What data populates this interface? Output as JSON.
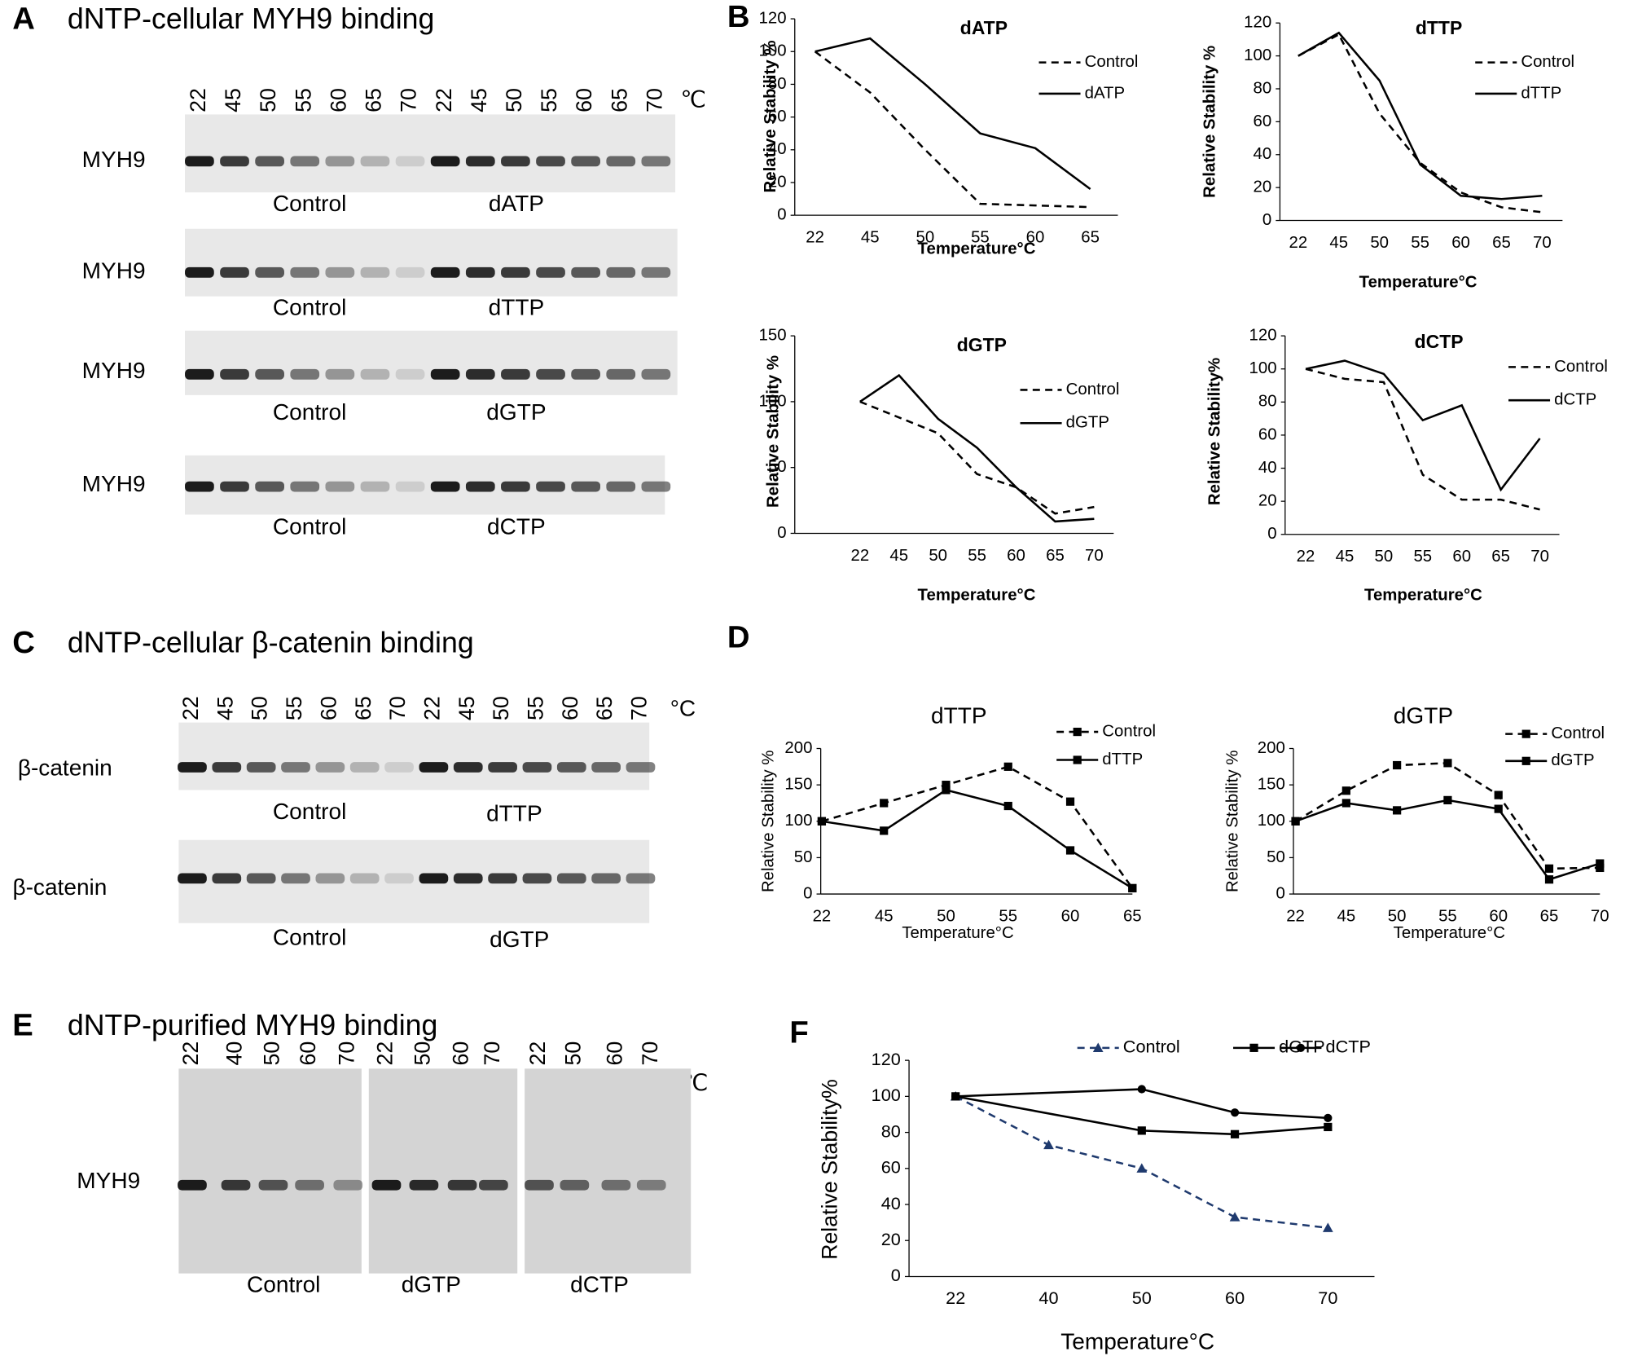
{
  "panel_letters": [
    "A",
    "B",
    "C",
    "D",
    "E",
    "F"
  ],
  "gels": [
    {
      "title": "dNTP-cellular MYH9 binding",
      "lanes": [
        "22",
        "45",
        "50",
        "55",
        "60",
        "65",
        "70",
        "22",
        "45",
        "50",
        "55",
        "60",
        "65",
        "70"
      ],
      "unit": "℃",
      "rows": [
        {
          "label": "MYH9",
          "groups": [
            "Control",
            "dATP"
          ]
        },
        {
          "label": "MYH9",
          "groups": [
            "Control",
            "dTTP"
          ]
        },
        {
          "label": "MYH9",
          "groups": [
            "Control",
            "dGTP"
          ]
        },
        {
          "label": "MYH9",
          "groups": [
            "Control",
            "dCTP"
          ]
        }
      ]
    },
    {
      "title": "dNTP-cellular β-catenin binding",
      "lanes": [
        "22",
        "45",
        "50",
        "55",
        "60",
        "65",
        "70",
        "22",
        "45",
        "50",
        "55",
        "60",
        "65",
        "70"
      ],
      "unit": "°C",
      "rows": [
        {
          "label": "β-catenin",
          "groups": [
            "Control",
            "dTTP"
          ]
        },
        {
          "label": "β-catenin",
          "groups": [
            "Control",
            "dGTP"
          ]
        }
      ]
    },
    {
      "title": "dNTP-purified MYH9 binding",
      "lanes": [
        "22",
        "40",
        "50",
        "60",
        "70",
        "22",
        "50",
        "60",
        "70",
        "22",
        "50",
        "60",
        "70"
      ],
      "unit": "℃",
      "rows": [
        {
          "label": "MYH9",
          "groups": [
            "Control",
            "dGTP",
            "dCTP"
          ]
        }
      ]
    }
  ],
  "chart_data": [
    {
      "type": "line",
      "title": "dATP",
      "categories": [
        "22",
        "45",
        "50",
        "55",
        "60",
        "65"
      ],
      "x_label": "Temperature°C",
      "y_label": "Relative Stability %",
      "ylim": [
        0,
        120
      ],
      "yticks": [
        0,
        20,
        40,
        60,
        80,
        100,
        120
      ],
      "series": [
        {
          "name": "Control",
          "color": "#000000",
          "style": "dashed",
          "values": [
            100,
            75,
            40,
            7,
            6,
            5
          ]
        },
        {
          "name": "dATP",
          "color": "#000000",
          "style": "solid",
          "values": [
            100,
            108,
            80,
            50,
            41,
            16
          ]
        }
      ]
    },
    {
      "type": "line",
      "title": "dTTP",
      "categories": [
        "22",
        "45",
        "50",
        "55",
        "60",
        "65",
        "70"
      ],
      "x_label": "Temperature°C",
      "y_label": "Relative Stability %",
      "ylim": [
        0,
        120
      ],
      "yticks": [
        0,
        20,
        40,
        60,
        80,
        100,
        120
      ],
      "series": [
        {
          "name": "Control",
          "color": "#000000",
          "style": "dashed",
          "values": [
            100,
            113,
            65,
            35,
            17,
            8,
            5
          ]
        },
        {
          "name": "dTTP",
          "color": "#000000",
          "style": "solid",
          "values": [
            100,
            114,
            85,
            34,
            15,
            13,
            15
          ]
        }
      ]
    },
    {
      "type": "line",
      "title": "dGTP",
      "categories": [
        "22",
        "45",
        "50",
        "55",
        "60",
        "65",
        "70"
      ],
      "x_label": "Temperature°C",
      "y_label": "Relative Stability %",
      "ylim": [
        0,
        150
      ],
      "yticks": [
        0,
        50,
        100,
        150
      ],
      "series": [
        {
          "name": "Control",
          "color": "#000000",
          "style": "dashed",
          "values": [
            100,
            88,
            76,
            45,
            35,
            15,
            20
          ]
        },
        {
          "name": "dGTP",
          "color": "#000000",
          "style": "solid",
          "values": [
            100,
            120,
            87,
            65,
            35,
            9,
            11
          ]
        }
      ]
    },
    {
      "type": "line",
      "title": "dCTP",
      "categories": [
        "22",
        "45",
        "50",
        "55",
        "60",
        "65",
        "70"
      ],
      "x_label": "Temperature°C",
      "y_label": "Relative Stability%",
      "ylim": [
        0,
        120
      ],
      "yticks": [
        0,
        20,
        40,
        60,
        80,
        100,
        120
      ],
      "series": [
        {
          "name": "Control",
          "color": "#000000",
          "style": "dashed",
          "values": [
            100,
            94,
            92,
            36,
            21,
            21,
            15
          ]
        },
        {
          "name": "dCTP",
          "color": "#000000",
          "style": "solid",
          "values": [
            100,
            105,
            97,
            69,
            78,
            27,
            58
          ]
        }
      ]
    },
    {
      "type": "line",
      "title": "dTTP",
      "categories": [
        "22",
        "45",
        "50",
        "55",
        "60",
        "65"
      ],
      "x_label": "Temperature°C",
      "y_label": "Relative Stability %",
      "ylim": [
        0,
        200
      ],
      "yticks": [
        0,
        50,
        100,
        150,
        200
      ],
      "series": [
        {
          "name": "Control",
          "color": "#000000",
          "style": "dashed",
          "marker": "square",
          "values": [
            100,
            125,
            150,
            175,
            127,
            8
          ]
        },
        {
          "name": "dTTP",
          "color": "#000000",
          "style": "solid",
          "marker": "square",
          "values": [
            100,
            87,
            143,
            121,
            60,
            8
          ]
        }
      ]
    },
    {
      "type": "line",
      "title": "dGTP",
      "categories": [
        "22",
        "45",
        "50",
        "55",
        "60",
        "65",
        "70"
      ],
      "x_label": "Temperature°C",
      "y_label": "Relative Stability %",
      "ylim": [
        0,
        200
      ],
      "yticks": [
        0,
        50,
        100,
        150,
        200
      ],
      "series": [
        {
          "name": "Control",
          "color": "#000000",
          "style": "dashed",
          "marker": "square",
          "values": [
            100,
            142,
            177,
            180,
            136,
            35,
            36
          ]
        },
        {
          "name": "dGTP",
          "color": "#000000",
          "style": "solid",
          "marker": "square",
          "values": [
            100,
            125,
            115,
            129,
            117,
            20,
            42
          ]
        }
      ]
    },
    {
      "type": "line",
      "categories": [
        "22",
        "40",
        "50",
        "60",
        "70"
      ],
      "x_label": "Temperature°C",
      "y_label": "Relative Stability%",
      "ylim": [
        0,
        120
      ],
      "yticks": [
        0,
        20,
        40,
        60,
        80,
        100,
        120
      ],
      "series": [
        {
          "name": "Control",
          "color": "#1f3a6e",
          "style": "dashed",
          "marker": "triangle",
          "x": [
            "22",
            "40",
            "50",
            "60",
            "70"
          ],
          "values": [
            100,
            73,
            60,
            33,
            27
          ]
        },
        {
          "name": "dGTP",
          "color": "#000000",
          "style": "solid",
          "marker": "square",
          "x": [
            "22",
            "50",
            "60",
            "70"
          ],
          "values": [
            100,
            81,
            79,
            83
          ]
        },
        {
          "name": "dCTP",
          "color": "#000000",
          "style": "solid",
          "marker": "circle",
          "x": [
            "22",
            "50",
            "60",
            "70"
          ],
          "values": [
            100,
            104,
            91,
            88
          ]
        }
      ]
    }
  ]
}
